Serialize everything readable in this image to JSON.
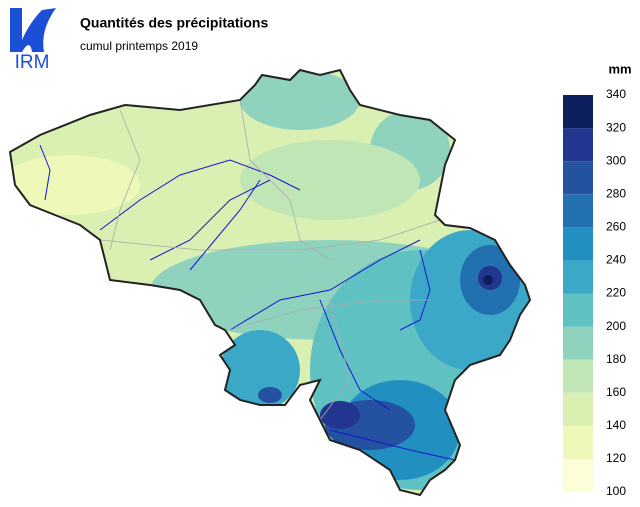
{
  "header": {
    "logo": "IRM",
    "title": "Quantités des précipitations",
    "subtitle": "cumul printemps 2019"
  },
  "legend": {
    "unit": "mm",
    "ticks": [
      100,
      120,
      140,
      160,
      180,
      200,
      220,
      240,
      260,
      280,
      300,
      320,
      340
    ],
    "colors": [
      "#fdfed8",
      "#eef8b8",
      "#daf0b2",
      "#c1e6b6",
      "#8fd3bf",
      "#60c1c3",
      "#3ba8c8",
      "#2190c0",
      "#2270b0",
      "#2452a0",
      "#23368f",
      "#0c1f5c"
    ]
  }
}
